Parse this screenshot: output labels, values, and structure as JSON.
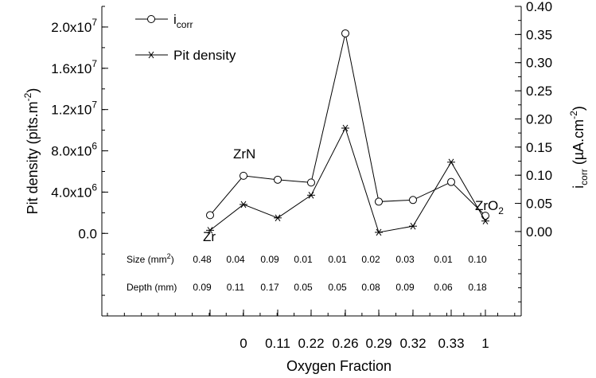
{
  "chart_data": {
    "type": "line",
    "title": "",
    "xlabel": "Oxygen Fraction",
    "categories": [
      "",
      "0",
      "0.11",
      "0.22",
      "0.26",
      "0.29",
      "0.32",
      "0.33",
      "1"
    ],
    "y_left": {
      "label": "Pit density (pits.m-2)",
      "ylim": [
        -8000000,
        22000000
      ],
      "ticks": [
        {
          "value": 0,
          "label": "0.0"
        },
        {
          "value": 4000000,
          "mant": "4.0x10",
          "exp": "6"
        },
        {
          "value": 8000000,
          "mant": "8.0x10",
          "exp": "6"
        },
        {
          "value": 12000000,
          "mant": "1.2x10",
          "exp": "7"
        },
        {
          "value": 16000000,
          "mant": "1.6x10",
          "exp": "7"
        },
        {
          "value": 20000000,
          "mant": "2.0x10",
          "exp": "7"
        }
      ]
    },
    "y_right": {
      "label": "i_corr (µA.cm-2)",
      "ylim": [
        -0.15,
        0.4
      ],
      "ticks": [
        "0.00",
        "0.05",
        "0.10",
        "0.15",
        "0.20",
        "0.25",
        "0.30",
        "0.35",
        "0.40"
      ]
    },
    "series": [
      {
        "name": "icorr",
        "axis": "right",
        "marker": "circle",
        "values": [
          0.029,
          0.099,
          0.092,
          0.087,
          0.352,
          0.053,
          0.056,
          0.088,
          0.028
        ]
      },
      {
        "name": "Pit density",
        "axis": "left",
        "marker": "asterisk",
        "values": [
          300000,
          2800000,
          1500000,
          3700000,
          10200000,
          100000,
          700000,
          6900000,
          1200000
        ]
      }
    ],
    "legend": {
      "position": "top-left",
      "entries": [
        {
          "main": "i",
          "sub": "corr"
        },
        {
          "main": "Pit density"
        }
      ]
    },
    "annotations": {
      "points": [
        {
          "category": 0,
          "main": "Zr",
          "sub": ""
        },
        {
          "category": 1,
          "main": "ZrN",
          "sub": ""
        },
        {
          "category": 8,
          "main": "ZrO",
          "sub": "2"
        }
      ],
      "table": [
        {
          "label": "Size (mm",
          "label_sup": "2",
          "label_end": ")",
          "values": [
            "0.48",
            "0.04",
            "0.09",
            "0.01",
            "0.01",
            "0.02",
            "0.03",
            "0.01",
            "0.10"
          ]
        },
        {
          "label": "Depth (mm)",
          "values": [
            "0.09",
            "0.11",
            "0.17",
            "0.05",
            "0.05",
            "0.08",
            "0.09",
            "0.06",
            "0.18"
          ]
        }
      ]
    },
    "grid": false
  }
}
